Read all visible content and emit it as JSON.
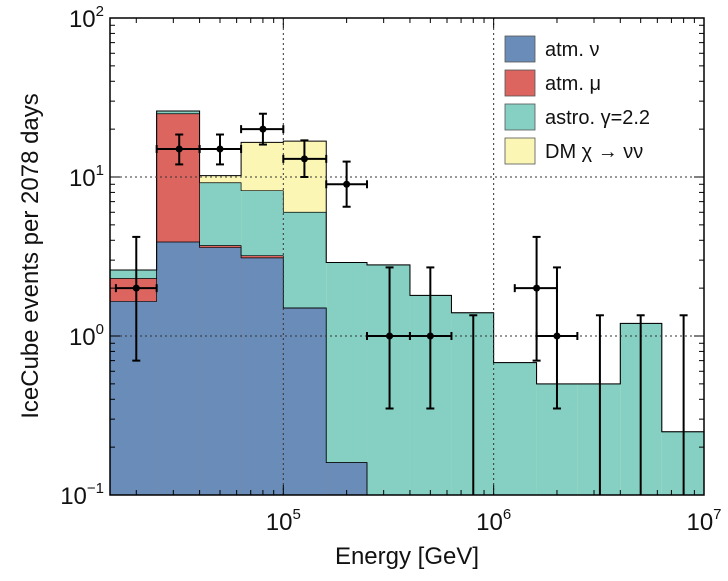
{
  "chart_data": {
    "type": "bar",
    "xlabel": "Energy  [GeV]",
    "ylabel": "IceCube events per 2078 days",
    "xscale": "log",
    "yscale": "log",
    "xlim": [
      15000,
      10000000
    ],
    "ylim": [
      0.1,
      100
    ],
    "grid": "dotted at decades",
    "legend_position": "top-right",
    "x_ticks": [
      {
        "base": "10",
        "exp": "5",
        "value": 100000
      },
      {
        "base": "10",
        "exp": "6",
        "value": 1000000
      },
      {
        "base": "10",
        "exp": "7",
        "value": 10000000
      }
    ],
    "y_ticks": [
      {
        "base": "10",
        "exp": "−1",
        "value": 0.1
      },
      {
        "base": "10",
        "exp": "0",
        "value": 1
      },
      {
        "base": "10",
        "exp": "1",
        "value": 10
      },
      {
        "base": "10",
        "exp": "2",
        "value": 100
      }
    ],
    "bin_edges": [
      15000,
      25000,
      40000,
      63000,
      100000,
      160000,
      250000,
      400000,
      630000,
      1000000,
      1600000,
      2500000,
      4000000,
      6300000,
      10000000
    ],
    "stacked_totals": [
      {
        "name": "atm. ν",
        "color": "#6a8cb8",
        "values": [
          1.65,
          3.9,
          3.6,
          3.1,
          1.5,
          0.16,
          0.1,
          0.1,
          0.1,
          0.1,
          0.1,
          0.1,
          0.1,
          0.1
        ]
      },
      {
        "name": "atm. μ",
        "color": "#dc6560",
        "values": [
          2.3,
          25.0,
          3.7,
          3.2,
          1.5,
          0.16,
          0.1,
          0.1,
          0.1,
          0.1,
          0.1,
          0.1,
          0.1,
          0.1
        ]
      },
      {
        "name": "astro. γ=2.2",
        "color": "#86d0c3",
        "values": [
          2.6,
          26.0,
          9.2,
          8.2,
          6.0,
          2.9,
          2.8,
          1.8,
          1.4,
          0.68,
          0.5,
          0.5,
          1.2,
          0.25
        ]
      },
      {
        "name": "DM χ → νν",
        "color": "#fbf6b4",
        "values": [
          2.6,
          26.0,
          10.2,
          16.5,
          16.8,
          2.9,
          2.8,
          1.8,
          1.4,
          0.68,
          0.5,
          0.5,
          1.2,
          0.25
        ]
      }
    ],
    "data_points": [
      {
        "x": 20000,
        "xlo": 16000,
        "xhi": 25000,
        "y": 2.0,
        "ylo": 0.7,
        "yhi": 4.2
      },
      {
        "x": 32000,
        "xlo": 25000,
        "xhi": 40000,
        "y": 15.0,
        "ylo": 12.0,
        "yhi": 18.5
      },
      {
        "x": 50000,
        "xlo": 40000,
        "xhi": 63000,
        "y": 15.0,
        "ylo": 12.0,
        "yhi": 18.5
      },
      {
        "x": 80000,
        "xlo": 63000,
        "xhi": 100000,
        "y": 20.0,
        "ylo": 16.0,
        "yhi": 25.0
      },
      {
        "x": 126000,
        "xlo": 100000,
        "xhi": 160000,
        "y": 13.0,
        "ylo": 10.0,
        "yhi": 17.0
      },
      {
        "x": 200000,
        "xlo": 160000,
        "xhi": 250000,
        "y": 9.0,
        "ylo": 6.5,
        "yhi": 12.5
      },
      {
        "x": 320000,
        "xlo": 250000,
        "xhi": 400000,
        "y": 1.0,
        "ylo": 0.35,
        "yhi": 2.7
      },
      {
        "x": 500000,
        "xlo": 400000,
        "xhi": 630000,
        "y": 1.0,
        "ylo": 0.35,
        "yhi": 2.7
      },
      {
        "x": 800000,
        "xlo": 800000,
        "xhi": 800000,
        "y": 0.1,
        "ylo": 0.1,
        "yhi": 1.35
      },
      {
        "x": 1600000,
        "xlo": 1260000,
        "xhi": 2000000,
        "y": 2.0,
        "ylo": 0.7,
        "yhi": 4.2
      },
      {
        "x": 2000000,
        "xlo": 1600000,
        "xhi": 2500000,
        "y": 1.0,
        "ylo": 0.35,
        "yhi": 2.7
      },
      {
        "x": 3200000,
        "xlo": 3200000,
        "xhi": 3200000,
        "y": 0.1,
        "ylo": 0.1,
        "yhi": 1.35
      },
      {
        "x": 5000000,
        "xlo": 5000000,
        "xhi": 5000000,
        "y": 0.1,
        "ylo": 0.1,
        "yhi": 1.35
      },
      {
        "x": 8000000,
        "xlo": 8000000,
        "xhi": 8000000,
        "y": 0.1,
        "ylo": 0.1,
        "yhi": 1.35
      }
    ],
    "legend": [
      {
        "label": "atm. ν",
        "color": "#6a8cb8"
      },
      {
        "label": "atm. μ",
        "color": "#dc6560"
      },
      {
        "label": "astro. γ=2.2",
        "color": "#86d0c3"
      },
      {
        "label": "DM χ → νν",
        "color": "#fbf6b4"
      }
    ]
  }
}
